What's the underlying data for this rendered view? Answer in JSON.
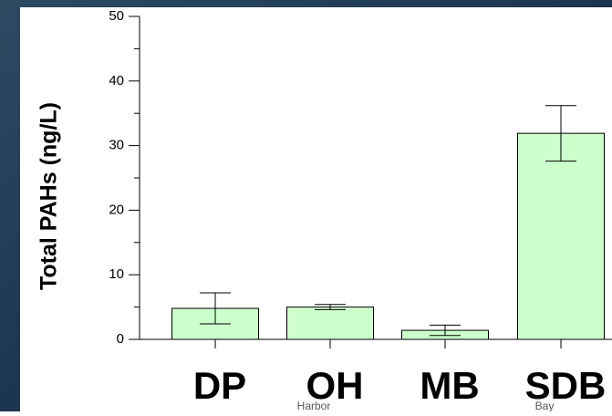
{
  "chart_data": {
    "type": "bar",
    "ylabel": "Total PAHs (ng/L)",
    "categories": [
      "DP",
      "OH",
      "MB",
      "SDB"
    ],
    "values": [
      4.8,
      5.0,
      1.4,
      31.9
    ],
    "errors": [
      2.4,
      0.4,
      0.8,
      4.3
    ],
    "annotations": [
      {
        "text": "Harbor",
        "category": 1
      },
      {
        "text": "Bay",
        "category": 3
      }
    ],
    "color": "#ccffcc",
    "ylim": [
      0,
      50
    ],
    "yticks": [
      0,
      10,
      20,
      30,
      40,
      50
    ],
    "minor_yticks": [
      5,
      15,
      25,
      35,
      45
    ]
  }
}
